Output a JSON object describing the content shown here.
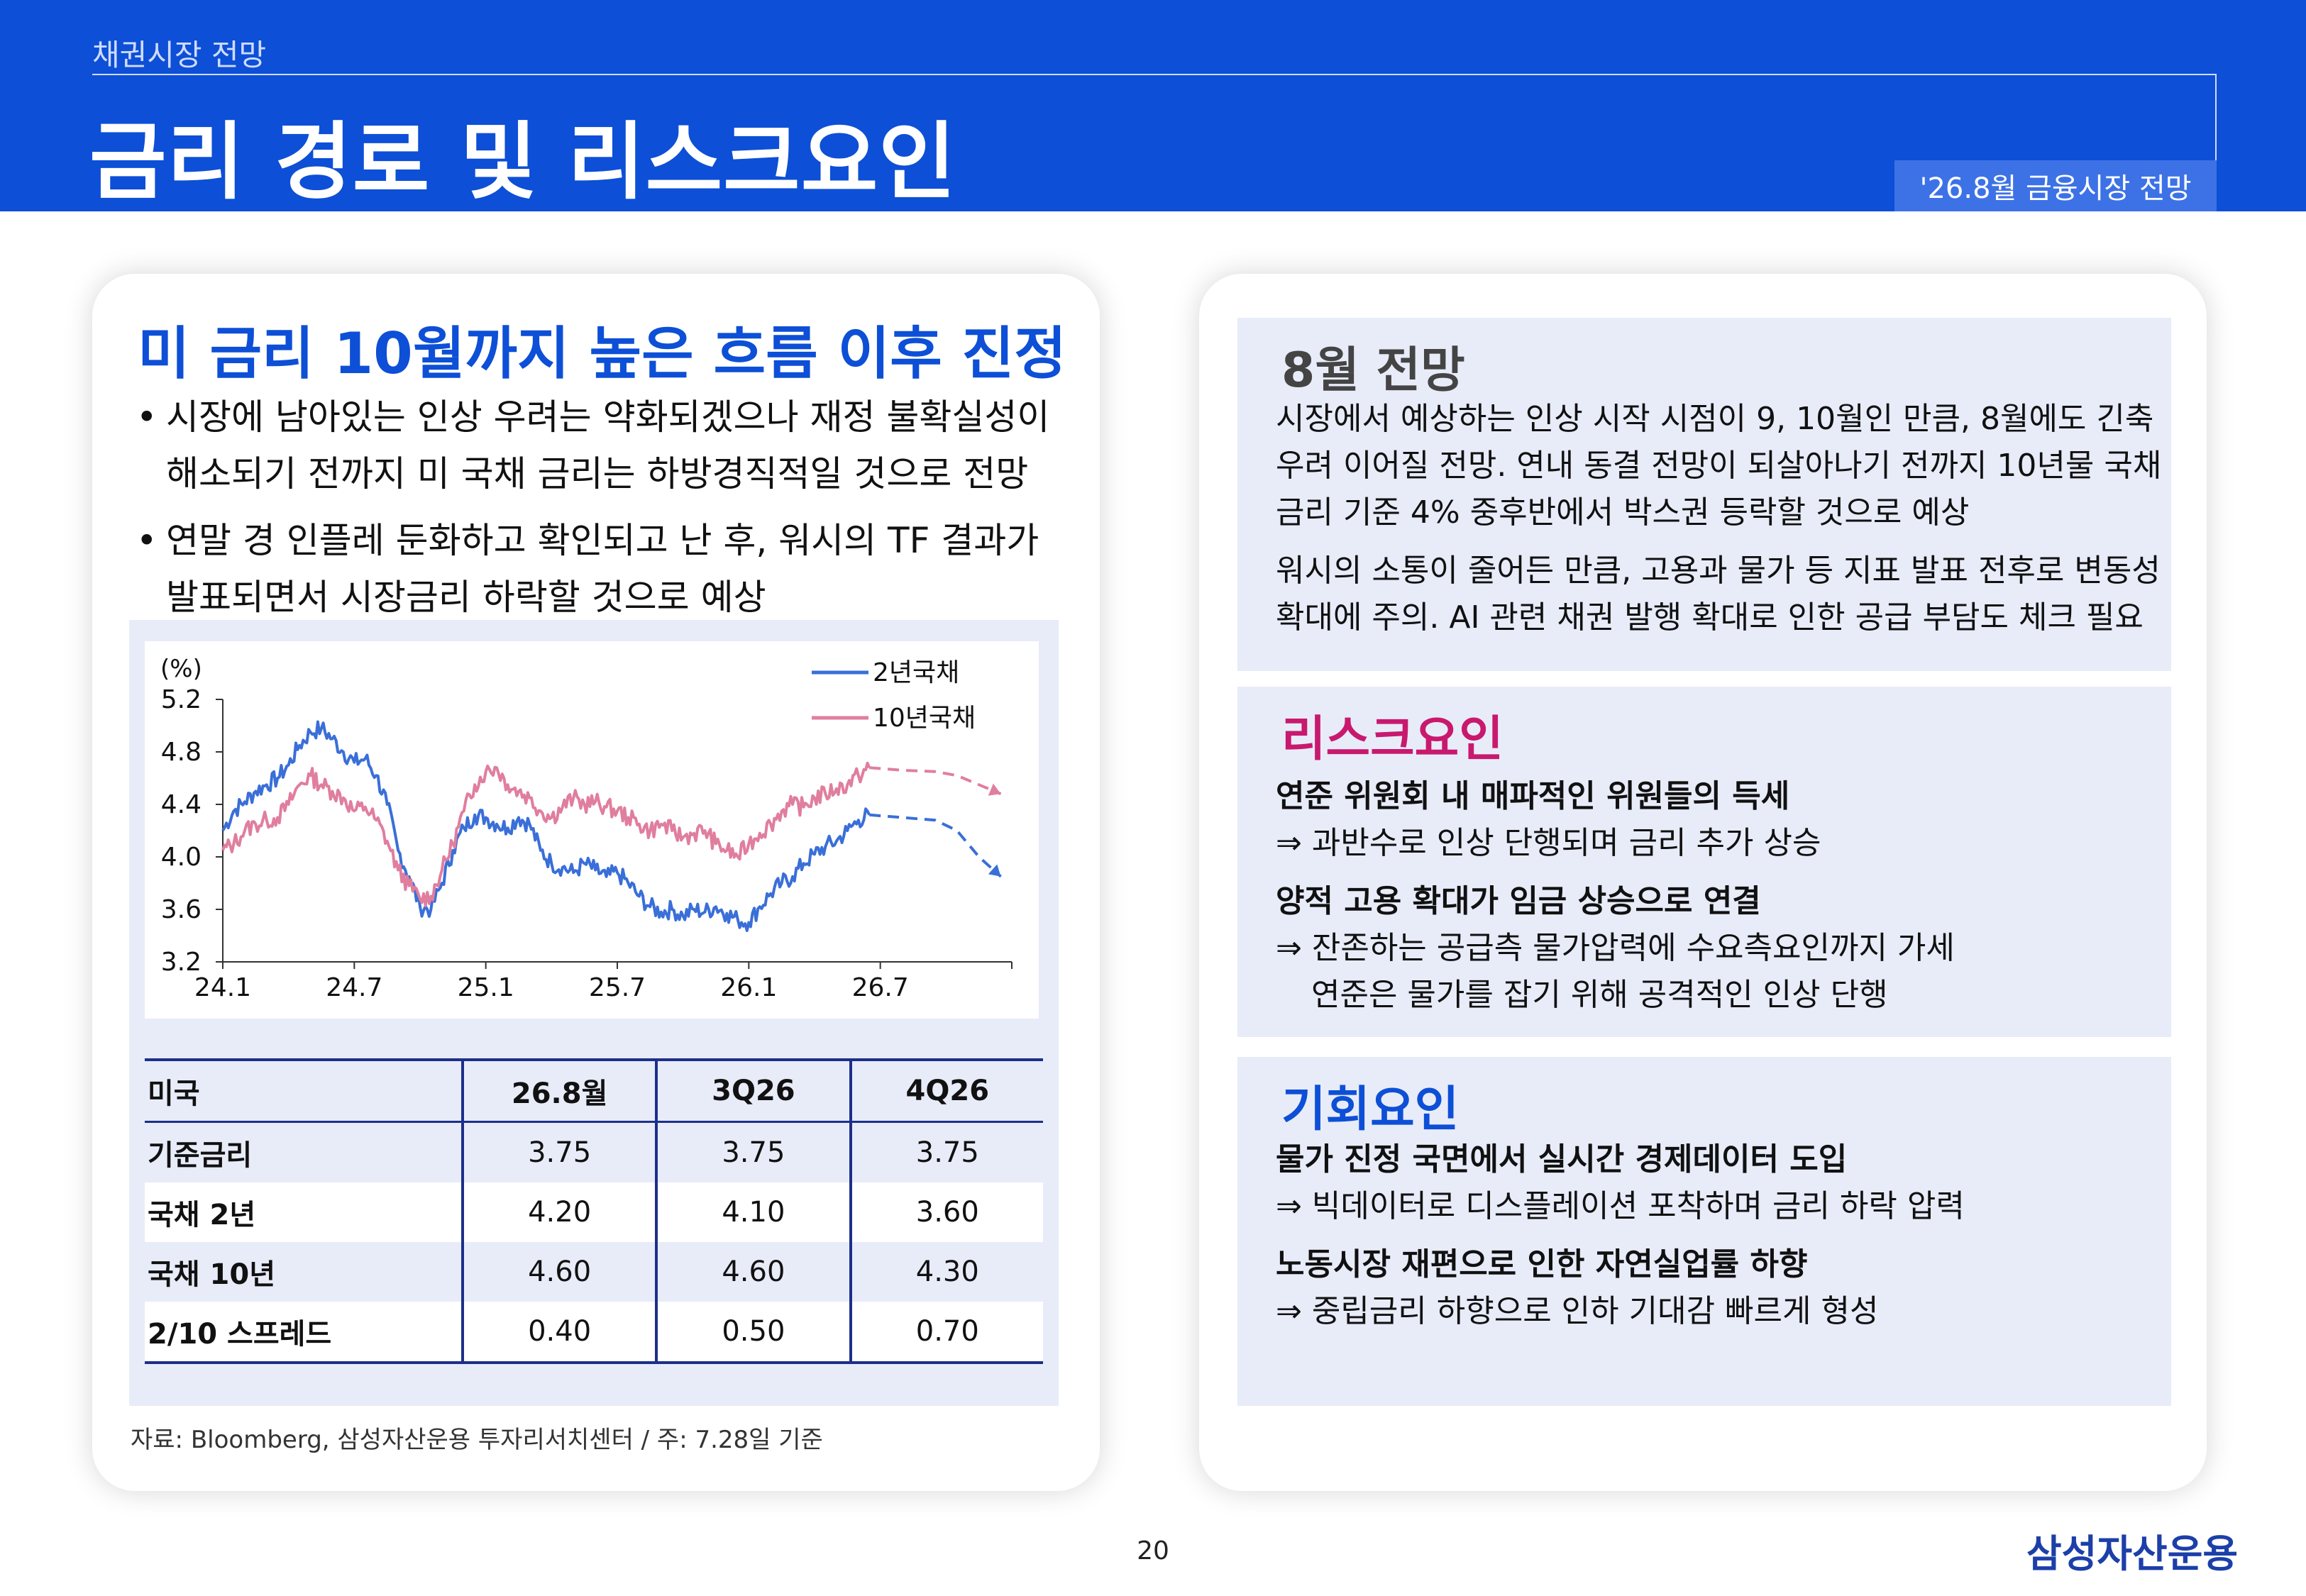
{
  "header": {
    "kicker": "채권시장 전망",
    "title": "금리 경로 및 리스크요인",
    "badge": "'26.8월 금융시장 전망"
  },
  "left": {
    "heading": "미 금리 10월까지 높은 흐름 이후 진정",
    "bullets": [
      [
        "시장에 남아있는 인상 우려는 약화되겠으나 재정 불확실성이",
        "해소되기 전까지 미 국채 금리는 하방경직적일 것으로 전망"
      ],
      [
        "연말 경 인플레 둔화하고 확인되고 난 후, 워시의 TF 결과가",
        "발표되면서 시장금리 하락할 것으로 예상"
      ]
    ],
    "source": "자료: Bloomberg, 삼성자산운용 투자리서치센터 / 주: 7.28일 기준"
  },
  "chart_data": {
    "type": "line",
    "ylabel": "(%)",
    "ylim": [
      3.2,
      5.2
    ],
    "yticks": [
      "5.2",
      "4.8",
      "4.4",
      "4.0",
      "3.6",
      "3.2"
    ],
    "xticks": [
      "24.1",
      "24.7",
      "25.1",
      "25.7",
      "26.1",
      "26.7"
    ],
    "x_range": [
      0,
      36
    ],
    "legend_position": "top-right",
    "series": [
      {
        "name": "2년국채",
        "color": "#3a6fd8",
        "points": [
          [
            0,
            4.2
          ],
          [
            0.5,
            4.35
          ],
          [
            1,
            4.42
          ],
          [
            1.5,
            4.5
          ],
          [
            2,
            4.55
          ],
          [
            2.5,
            4.6
          ],
          [
            3,
            4.7
          ],
          [
            3.5,
            4.85
          ],
          [
            4,
            4.95
          ],
          [
            4.5,
            4.98
          ],
          [
            5,
            4.9
          ],
          [
            5.5,
            4.8
          ],
          [
            6,
            4.72
          ],
          [
            6.5,
            4.75
          ],
          [
            7,
            4.62
          ],
          [
            7.5,
            4.4
          ],
          [
            8,
            4.05
          ],
          [
            8.5,
            3.85
          ],
          [
            9,
            3.62
          ],
          [
            9.5,
            3.6
          ],
          [
            10,
            3.8
          ],
          [
            10.5,
            4.05
          ],
          [
            11,
            4.22
          ],
          [
            11.5,
            4.32
          ],
          [
            12,
            4.3
          ],
          [
            12.5,
            4.25
          ],
          [
            13,
            4.22
          ],
          [
            13.5,
            4.3
          ],
          [
            14,
            4.25
          ],
          [
            14.5,
            4.05
          ],
          [
            15,
            3.95
          ],
          [
            15.5,
            3.92
          ],
          [
            16,
            3.88
          ],
          [
            16.5,
            3.95
          ],
          [
            17,
            3.9
          ],
          [
            17.5,
            3.85
          ],
          [
            18,
            3.88
          ],
          [
            18.5,
            3.8
          ],
          [
            19,
            3.7
          ],
          [
            19.5,
            3.62
          ],
          [
            20,
            3.58
          ],
          [
            20.5,
            3.6
          ],
          [
            21,
            3.55
          ],
          [
            21.5,
            3.6
          ],
          [
            22,
            3.58
          ],
          [
            22.5,
            3.62
          ],
          [
            23,
            3.57
          ],
          [
            23.5,
            3.52
          ],
          [
            24,
            3.5
          ],
          [
            24.5,
            3.62
          ],
          [
            25,
            3.72
          ],
          [
            25.5,
            3.8
          ],
          [
            26,
            3.85
          ],
          [
            26.5,
            3.95
          ],
          [
            27,
            4.02
          ],
          [
            27.5,
            4.08
          ],
          [
            28,
            4.12
          ],
          [
            28.5,
            4.2
          ],
          [
            29,
            4.28
          ],
          [
            29.5,
            4.32
          ]
        ],
        "forecast": [
          [
            29.5,
            4.32
          ],
          [
            31,
            4.3
          ],
          [
            32.5,
            4.28
          ],
          [
            33.5,
            4.2
          ],
          [
            34.5,
            4.0
          ],
          [
            35.5,
            3.85
          ]
        ]
      },
      {
        "name": "10년국채",
        "color": "#e07e9e",
        "points": [
          [
            0,
            4.05
          ],
          [
            0.5,
            4.1
          ],
          [
            1,
            4.2
          ],
          [
            1.5,
            4.25
          ],
          [
            2,
            4.28
          ],
          [
            2.5,
            4.3
          ],
          [
            3,
            4.4
          ],
          [
            3.5,
            4.55
          ],
          [
            4,
            4.62
          ],
          [
            4.5,
            4.55
          ],
          [
            5,
            4.5
          ],
          [
            5.5,
            4.45
          ],
          [
            6,
            4.35
          ],
          [
            6.5,
            4.38
          ],
          [
            7,
            4.28
          ],
          [
            7.5,
            4.12
          ],
          [
            8,
            3.9
          ],
          [
            8.5,
            3.78
          ],
          [
            9,
            3.68
          ],
          [
            9.5,
            3.7
          ],
          [
            10,
            3.9
          ],
          [
            10.5,
            4.1
          ],
          [
            11,
            4.35
          ],
          [
            11.5,
            4.55
          ],
          [
            12,
            4.65
          ],
          [
            12.5,
            4.68
          ],
          [
            13,
            4.55
          ],
          [
            13.5,
            4.5
          ],
          [
            14,
            4.45
          ],
          [
            14.5,
            4.35
          ],
          [
            15,
            4.3
          ],
          [
            15.5,
            4.38
          ],
          [
            16,
            4.45
          ],
          [
            16.5,
            4.4
          ],
          [
            17,
            4.42
          ],
          [
            17.5,
            4.38
          ],
          [
            18,
            4.35
          ],
          [
            18.5,
            4.3
          ],
          [
            19,
            4.25
          ],
          [
            19.5,
            4.2
          ],
          [
            20,
            4.25
          ],
          [
            20.5,
            4.2
          ],
          [
            21,
            4.15
          ],
          [
            21.5,
            4.18
          ],
          [
            22,
            4.2
          ],
          [
            22.5,
            4.1
          ],
          [
            23,
            4.05
          ],
          [
            23.5,
            4.0
          ],
          [
            24,
            4.1
          ],
          [
            24.5,
            4.18
          ],
          [
            25,
            4.25
          ],
          [
            25.5,
            4.35
          ],
          [
            26,
            4.4
          ],
          [
            26.5,
            4.38
          ],
          [
            27,
            4.45
          ],
          [
            27.5,
            4.48
          ],
          [
            28,
            4.52
          ],
          [
            28.5,
            4.55
          ],
          [
            29,
            4.62
          ],
          [
            29.5,
            4.68
          ]
        ],
        "forecast": [
          [
            29.5,
            4.68
          ],
          [
            31,
            4.66
          ],
          [
            32.5,
            4.65
          ],
          [
            33.5,
            4.62
          ],
          [
            34.5,
            4.55
          ],
          [
            35.5,
            4.48
          ]
        ]
      }
    ]
  },
  "table": {
    "headers": [
      "미국",
      "26.8월",
      "3Q26",
      "4Q26"
    ],
    "rows": [
      [
        "기준금리",
        "3.75",
        "3.75",
        "3.75"
      ],
      [
        "국채 2년",
        "4.20",
        "4.10",
        "3.60"
      ],
      [
        "국채 10년",
        "4.60",
        "4.60",
        "4.30"
      ],
      [
        "2/10 스프레드",
        "0.40",
        "0.50",
        "0.70"
      ]
    ]
  },
  "right": {
    "outlook": {
      "title": "8월 전망",
      "title_color": "#444444",
      "lines": [
        "시장에서 예상하는 인상 시작 시점이 9, 10월인 만큼, 8월에도 긴축",
        "우려 이어질 전망. 연내 동결 전망이 되살아나기 전까지 10년물 국채",
        "금리 기준 4% 중후반에서 박스권 등락할 것으로 예상",
        "워시의 소통이 줄어든 만큼, 고용과 물가 등 지표 발표 전후로 변동성",
        "확대에 주의. AI 관련 채권 발행 확대로 인한 공급 부담도 체크 필요"
      ]
    },
    "risk": {
      "title": "리스크요인",
      "title_color": "#c8196e",
      "lines": [
        "연준 위원회 내 매파적인 위원들의 득세",
        "⇒ 과반수로 인상  단행되며 금리 추가 상승",
        "양적 고용 확대가 임금 상승으로 연결",
        "⇒ 잔존하는 공급측 물가압력에 수요측요인까지 가세",
        "연준은 물가를 잡기 위해 공격적인 인상 단행"
      ]
    },
    "opportunity": {
      "title": "기회요인",
      "title_color": "#0d4fd6",
      "lines": [
        "물가 진정 국면에서 실시간 경제데이터 도입",
        "⇒ 빅데이터로 디스플레이션 포착하며 금리 하락 압력",
        "노동시장 재편으로 인한 자연실업률 하향",
        "⇒ 중립금리 하향으로 인하 기대감 빠르게 형성"
      ]
    }
  },
  "footer": {
    "page_number": "20",
    "logo": "삼성자산운용"
  }
}
